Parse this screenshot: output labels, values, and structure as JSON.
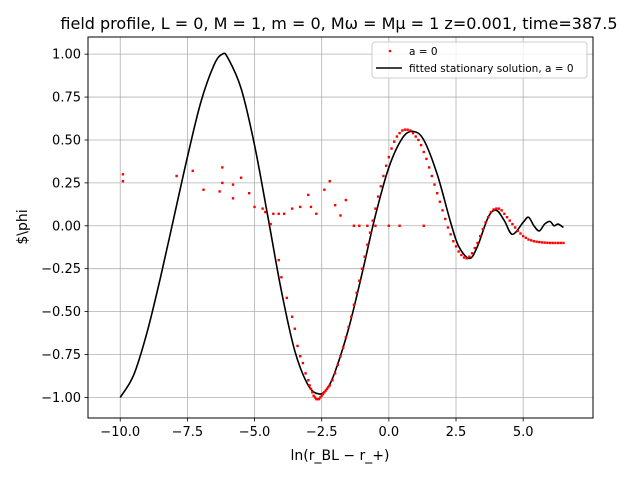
{
  "chart_data": {
    "type": "line",
    "title": "field profile, L = 0, M = 1, m = 0, Mω = Mμ = 1 z=0.001, time=387.5",
    "xlabel": "ln(r_BL − r_+)",
    "ylabel": "$\\phi",
    "xlim": [
      -11.2,
      7.6
    ],
    "ylim": [
      -1.12,
      1.1
    ],
    "xticks": [
      -10.0,
      -7.5,
      -5.0,
      -2.5,
      0.0,
      2.5,
      5.0
    ],
    "xtick_labels": [
      "−10.0",
      "−7.5",
      "−5.0",
      "−2.5",
      "0.0",
      "2.5",
      "5.0"
    ],
    "yticks": [
      -1.0,
      -0.75,
      -0.5,
      -0.25,
      0.0,
      0.25,
      0.5,
      0.75,
      1.0
    ],
    "ytick_labels": [
      "−1.00",
      "−0.75",
      "−0.50",
      "−0.25",
      "0.00",
      "0.25",
      "0.50",
      "0.75",
      "1.00"
    ],
    "grid": true,
    "legend_position": "top-right",
    "series": [
      {
        "name": "a = 0",
        "style": "scatter",
        "color": "#ff0000",
        "x": [
          -9.9,
          -9.9,
          -7.9,
          -7.3,
          -6.9,
          -6.3,
          -6.2,
          -6.2,
          -5.8,
          -5.8,
          -5.5,
          -5.2,
          -5.0,
          -4.7,
          -4.6,
          -4.4,
          -4.3,
          -4.1,
          -3.9,
          -3.6,
          -3.3,
          -3.0,
          -2.9,
          -2.7,
          -2.4,
          -2.2,
          -2.0,
          -1.8,
          -1.6,
          -1.3,
          -1.1,
          -0.8,
          -0.5,
          0.0,
          0.4,
          1.3,
          -4.1,
          -4.0,
          -3.8,
          -3.6,
          -3.5,
          -3.4,
          -3.3,
          -3.2,
          -3.1,
          -3.0,
          -2.95,
          -2.9,
          -2.85,
          -2.8,
          -2.75,
          -2.7,
          -2.65,
          -2.6,
          -2.55,
          -2.5,
          -2.45,
          -2.4,
          -2.35,
          -2.3,
          -2.25,
          -2.2,
          -2.1,
          -2.0,
          -1.9,
          -1.8,
          -1.7,
          -1.6,
          -1.5,
          -1.4,
          -1.3,
          -1.2,
          -1.1,
          -1.0,
          -0.9,
          -0.8,
          -0.7,
          -0.6,
          -0.5,
          -0.4,
          -0.3,
          -0.2,
          -0.1,
          0.0,
          0.1,
          0.2,
          0.3,
          0.4,
          0.5,
          0.6,
          0.7,
          0.8,
          0.9,
          1.0,
          1.1,
          1.2,
          1.3,
          1.4,
          1.5,
          1.6,
          1.7,
          1.8,
          1.9,
          2.0,
          2.1,
          2.2,
          2.3,
          2.4,
          2.5,
          2.6,
          2.7,
          2.8,
          2.9,
          3.0,
          3.1,
          3.2,
          3.3,
          3.4,
          3.5,
          3.6,
          3.7,
          3.8,
          3.9,
          4.0,
          4.1,
          4.2,
          4.3,
          4.4,
          4.5,
          4.6,
          4.7,
          4.8,
          4.9,
          5.0,
          5.1,
          5.2,
          5.3,
          5.4,
          5.5,
          5.6,
          5.7,
          5.8,
          5.9,
          6.0,
          6.1,
          6.2,
          6.3,
          6.4,
          6.5
        ],
        "y": [
          0.3,
          0.26,
          0.29,
          0.32,
          0.21,
          0.2,
          0.34,
          0.25,
          0.24,
          0.16,
          0.28,
          0.19,
          0.11,
          0.1,
          0.08,
          0.01,
          0.07,
          0.07,
          0.07,
          0.1,
          0.11,
          0.18,
          0.11,
          0.07,
          0.21,
          0.26,
          0.12,
          0.06,
          0.15,
          0.0,
          0.0,
          0.0,
          0.0,
          0.0,
          0.0,
          0.0,
          -0.2,
          -0.3,
          -0.42,
          -0.53,
          -0.6,
          -0.7,
          -0.76,
          -0.8,
          -0.86,
          -0.9,
          -0.93,
          -0.95,
          -0.97,
          -0.99,
          -1.0,
          -1.01,
          -1.01,
          -1.01,
          -1.0,
          -0.99,
          -0.98,
          -0.97,
          -0.96,
          -0.95,
          -0.94,
          -0.93,
          -0.9,
          -0.86,
          -0.81,
          -0.76,
          -0.71,
          -0.65,
          -0.59,
          -0.53,
          -0.46,
          -0.39,
          -0.32,
          -0.25,
          -0.18,
          -0.11,
          -0.04,
          0.03,
          0.1,
          0.17,
          0.23,
          0.29,
          0.35,
          0.4,
          0.45,
          0.49,
          0.52,
          0.54,
          0.555,
          0.56,
          0.56,
          0.555,
          0.54,
          0.52,
          0.5,
          0.47,
          0.43,
          0.39,
          0.34,
          0.29,
          0.24,
          0.19,
          0.14,
          0.09,
          0.04,
          -0.01,
          -0.05,
          -0.09,
          -0.12,
          -0.15,
          -0.17,
          -0.185,
          -0.19,
          -0.18,
          -0.16,
          -0.13,
          -0.1,
          -0.06,
          -0.02,
          0.02,
          0.05,
          0.08,
          0.095,
          0.1,
          0.1,
          0.09,
          0.07,
          0.05,
          0.03,
          0.01,
          -0.01,
          -0.03,
          -0.045,
          -0.06,
          -0.07,
          -0.08,
          -0.085,
          -0.09,
          -0.093,
          -0.095,
          -0.097,
          -0.098,
          -0.099,
          -0.1,
          -0.1,
          -0.1,
          -0.1,
          -0.1,
          -0.1
        ]
      },
      {
        "name": "fitted stationary solution, a = 0",
        "style": "line",
        "color": "#000000",
        "x": [
          -10.0,
          -9.5,
          -9.0,
          -8.5,
          -8.0,
          -7.5,
          -7.0,
          -6.5,
          -6.2,
          -6.0,
          -5.5,
          -5.0,
          -4.5,
          -4.0,
          -3.5,
          -3.0,
          -2.6,
          -2.3,
          -2.0,
          -1.5,
          -1.0,
          -0.5,
          0.0,
          0.5,
          0.9,
          1.3,
          1.8,
          2.3,
          2.6,
          3.0,
          3.3,
          3.7,
          4.0,
          4.3,
          4.6,
          5.0,
          5.2,
          5.4,
          5.6,
          5.8,
          6.0,
          6.15,
          6.3,
          6.5
        ],
        "y": [
          -1.0,
          -0.87,
          -0.62,
          -0.3,
          0.05,
          0.4,
          0.72,
          0.94,
          1.0,
          0.98,
          0.8,
          0.47,
          0.05,
          -0.38,
          -0.73,
          -0.93,
          -0.98,
          -0.95,
          -0.85,
          -0.6,
          -0.28,
          0.06,
          0.34,
          0.51,
          0.55,
          0.5,
          0.3,
          0.02,
          -0.12,
          -0.19,
          -0.12,
          0.05,
          0.09,
          0.03,
          -0.05,
          0.02,
          0.05,
          0.0,
          -0.03,
          0.01,
          0.025,
          0.0,
          0.01,
          -0.01
        ]
      }
    ]
  }
}
